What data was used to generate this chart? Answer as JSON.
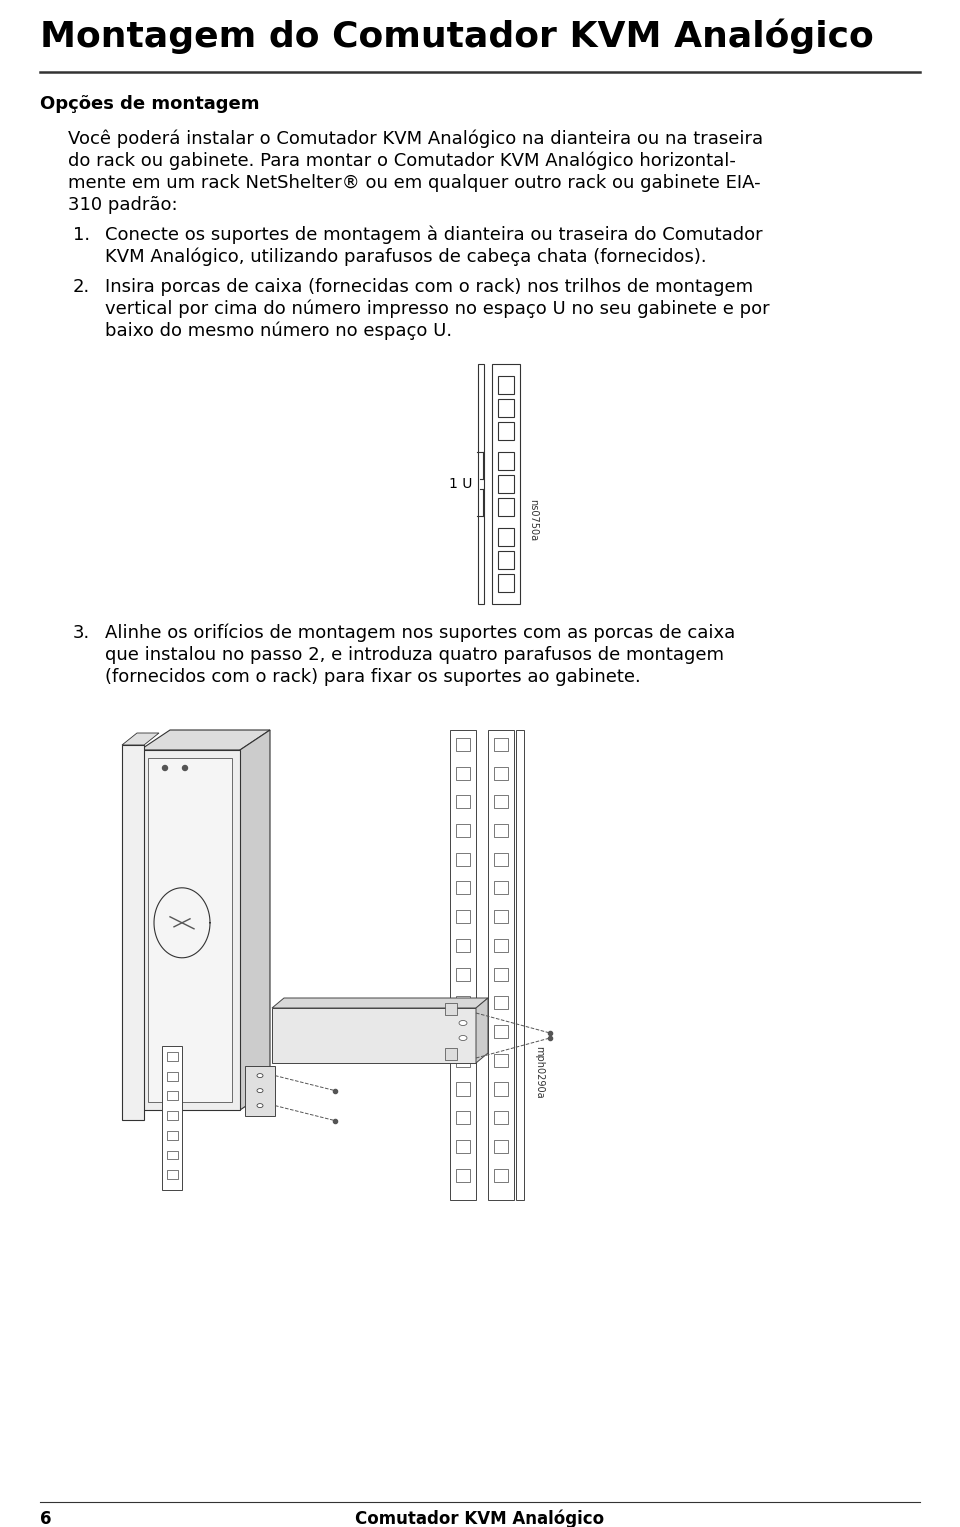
{
  "title": "Montagem do Comutador KVM Analógico",
  "section_heading": "Opções de montagem",
  "para1_lines": [
    "Você poderá instalar o Comutador KVM Analógico na dianteira ou na traseira",
    "do rack ou gabinete. Para montar o Comutador KVM Analógico horizontal-",
    "mente em um rack NetShelter® ou em qualquer outro rack ou gabinete EIA-",
    "310 padrão:"
  ],
  "item1_lines": [
    "Conecte os suportes de montagem à dianteira ou traseira do Comutador",
    "KVM Analógico, utilizando parafusos de cabeça chata (fornecidos)."
  ],
  "item2_lines": [
    "Insira porcas de caixa (fornecidas com o rack) nos trilhos de montagem",
    "vertical por cima do número impresso no espaço U no seu gabinete e por",
    "baixo do mesmo número no espaço U."
  ],
  "item3_lines": [
    "Alinhe os orifícios de montagem nos suportes com as porcas de caixa",
    "que instalou no passo 2, e introduza quatro parafusos de montagem",
    "(fornecidos com o rack) para fixar os suportes ao gabinete."
  ],
  "footer_page": "6",
  "footer_text": "Comutador KVM Analógico",
  "text_color": "#000000",
  "bg_color": "#ffffff",
  "diag1_label": "ns0750a",
  "diag2_label": "mph0290a",
  "label_1u": "1 U"
}
